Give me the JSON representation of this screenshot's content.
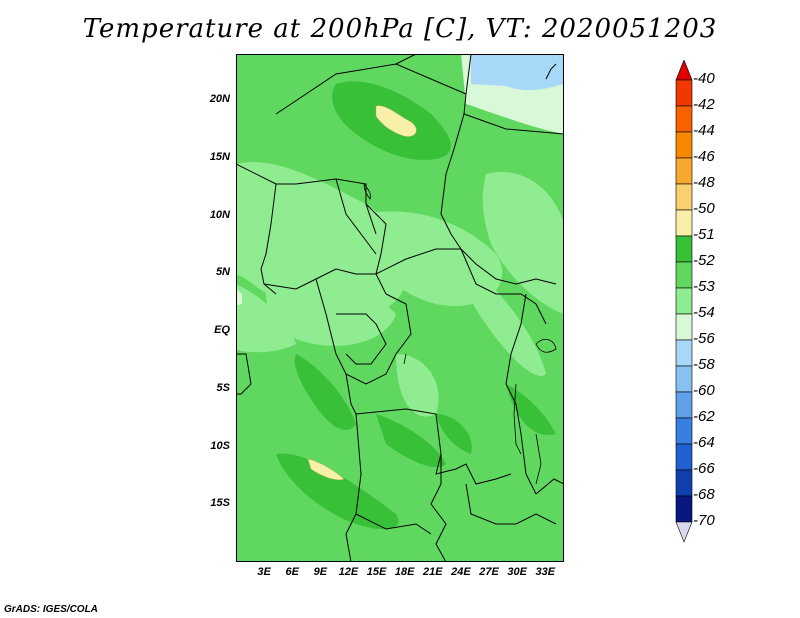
{
  "title": "Temperature at 200hPa [C], VT: 2020051203",
  "credit": "GrADS: IGES/COLA",
  "map": {
    "region": "Central Africa",
    "lat_range": [
      -20,
      24
    ],
    "lon_range": [
      0,
      35
    ],
    "lat_labels": [
      "20N",
      "15N",
      "10N",
      "5N",
      "EQ",
      "5S",
      "10S",
      "15S"
    ],
    "lat_values": [
      20,
      15,
      10,
      5,
      0,
      -5,
      -10,
      -15
    ],
    "lon_labels": [
      "3E",
      "6E",
      "9E",
      "12E",
      "15E",
      "18E",
      "21E",
      "24E",
      "27E",
      "30E",
      "33E"
    ],
    "lon_values": [
      3,
      6,
      9,
      12,
      15,
      18,
      21,
      24,
      27,
      30,
      33
    ]
  },
  "colorbar": {
    "levels": [
      "-40",
      "-42",
      "-44",
      "-46",
      "-48",
      "-50",
      "-51",
      "-52",
      "-53",
      "-54",
      "-56",
      "-58",
      "-60",
      "-62",
      "-64",
      "-66",
      "-68",
      "-70"
    ],
    "colors": [
      "#e00000",
      "#f03800",
      "#f86000",
      "#f88800",
      "#f8a830",
      "#f8d070",
      "#f8f0a8",
      "#38c038",
      "#60d860",
      "#90ec90",
      "#d8f8d8",
      "#a8d8f8",
      "#88c0f0",
      "#60a0e8",
      "#3880e0",
      "#2060d0",
      "#1040b0",
      "#081880",
      "#d8d8f0"
    ]
  }
}
